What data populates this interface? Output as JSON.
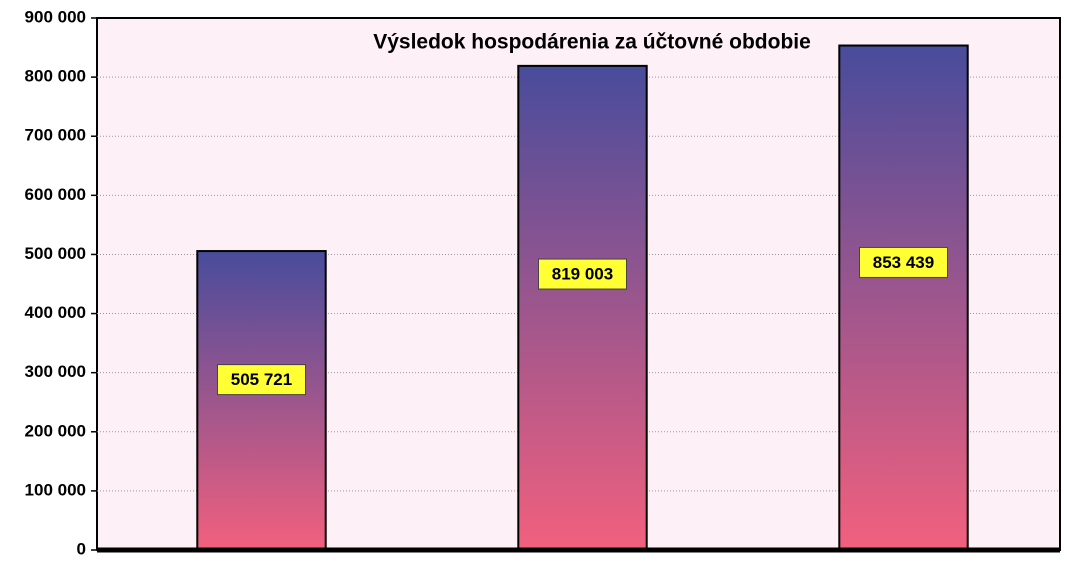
{
  "chart_data": {
    "type": "bar",
    "title": "Výsledok hospodárenia za účtovné obdobie",
    "categories": [
      null,
      null,
      null
    ],
    "values": [
      505721,
      819003,
      853439
    ],
    "value_labels": [
      "505 721",
      "819 003",
      "853 439"
    ],
    "color": [
      "#484c9c",
      "#f2607e"
    ],
    "ylim": [
      0,
      900000
    ],
    "yticks": [
      {
        "value": 0,
        "label": "0"
      },
      {
        "value": 100000,
        "label": "100 000"
      },
      {
        "value": 200000,
        "label": "200 000"
      },
      {
        "value": 300000,
        "label": "300 000"
      },
      {
        "value": 400000,
        "label": "400 000"
      },
      {
        "value": 500000,
        "label": "500 000"
      },
      {
        "value": 600000,
        "label": "600 000"
      },
      {
        "value": 700000,
        "label": "700 000"
      },
      {
        "value": 800000,
        "label": "800 000"
      },
      {
        "value": 900000,
        "label": "900 000"
      }
    ],
    "grid": true
  }
}
